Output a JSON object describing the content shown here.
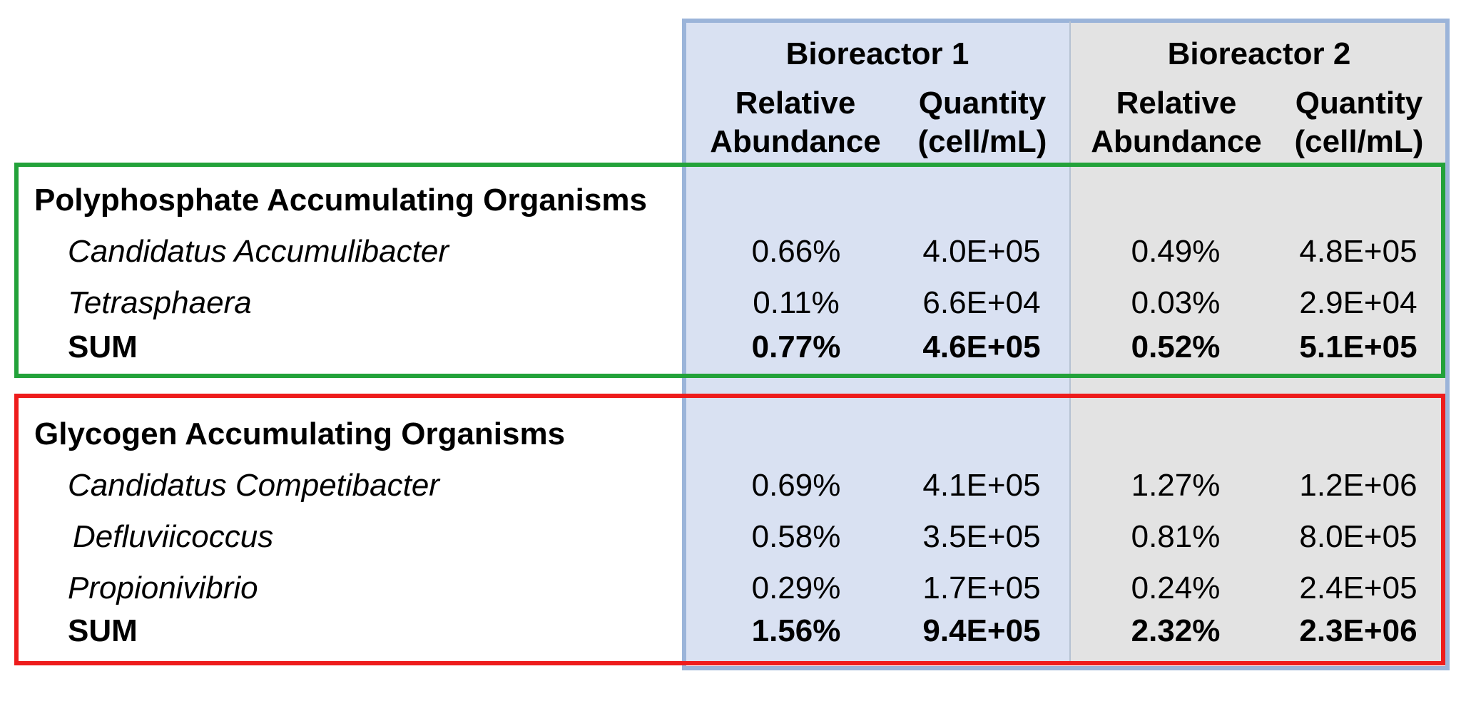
{
  "headers": {
    "bioreactor1": "Bioreactor 1",
    "bioreactor2": "Bioreactor 2",
    "rel_abundance_1": "Relative",
    "rel_abundance_2": "Abundance",
    "quantity_1": "Quantity",
    "quantity_2": "(cell/mL)"
  },
  "sections": [
    {
      "title": "Polyphosphate Accumulating Organisms",
      "box_color": "#23a23a",
      "rows": [
        {
          "name": "Candidatus Accumulibacter",
          "b1_rel": "0.66%",
          "b1_qty": "4.0E+05",
          "b2_rel": "0.49%",
          "b2_qty": "4.8E+05"
        },
        {
          "name": "Tetrasphaera",
          "b1_rel": "0.11%",
          "b1_qty": "6.6E+04",
          "b2_rel": "0.03%",
          "b2_qty": "2.9E+04"
        }
      ],
      "sum": {
        "name": "SUM",
        "b1_rel": "0.77%",
        "b1_qty": "4.6E+05",
        "b2_rel": "0.52%",
        "b2_qty": "5.1E+05"
      }
    },
    {
      "title": "Glycogen Accumulating Organisms",
      "box_color": "#ee1c1c",
      "rows": [
        {
          "name": "Candidatus Competibacter",
          "b1_rel": "0.69%",
          "b1_qty": "4.1E+05",
          "b2_rel": "1.27%",
          "b2_qty": "1.2E+06"
        },
        {
          "name": "Defluviicoccus",
          "b1_rel": "0.58%",
          "b1_qty": "3.5E+05",
          "b2_rel": "0.81%",
          "b2_qty": "8.0E+05"
        },
        {
          "name": "Propionivibrio",
          "b1_rel": "0.29%",
          "b1_qty": "1.7E+05",
          "b2_rel": "0.24%",
          "b2_qty": "2.4E+05"
        }
      ],
      "sum": {
        "name": "SUM",
        "b1_rel": "1.56%",
        "b1_qty": "9.4E+05",
        "b2_rel": "2.32%",
        "b2_qty": "2.3E+06"
      }
    }
  ],
  "colors": {
    "bioreactor1_bg": "#d9e1f2",
    "bioreactor2_bg": "#e3e3e3",
    "outer_border": "#9bb4d9"
  }
}
